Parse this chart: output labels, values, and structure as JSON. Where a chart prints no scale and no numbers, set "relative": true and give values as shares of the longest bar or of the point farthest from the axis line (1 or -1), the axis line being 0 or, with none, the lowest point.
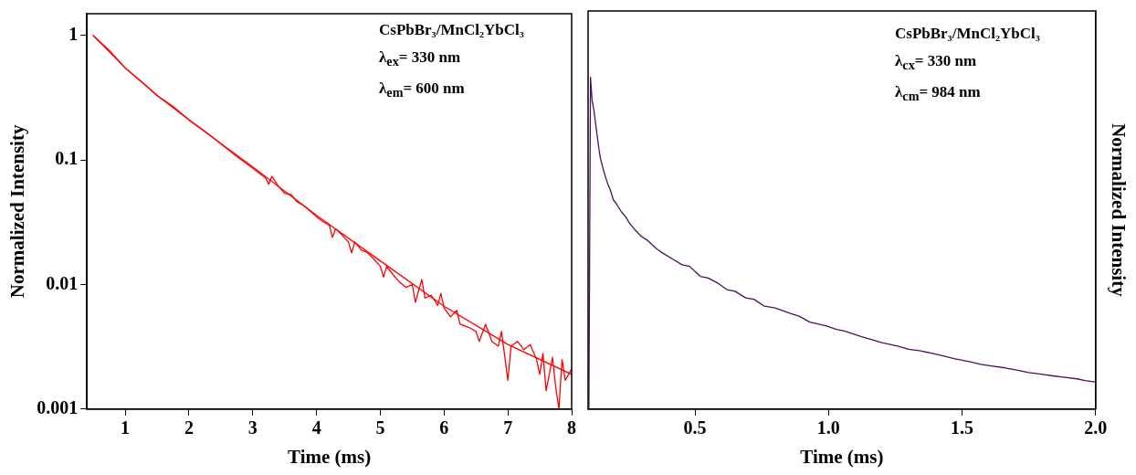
{
  "chart_data": [
    {
      "type": "line",
      "xlabel": "Time (ms)",
      "ylabel": "Normalized Intensity",
      "log": "y",
      "xlim": [
        0.4,
        8
      ],
      "xticks": [
        1,
        2,
        3,
        4,
        5,
        6,
        7,
        8
      ],
      "ylim": [
        0.001,
        1.5
      ],
      "yticks": [
        0.001,
        0.01,
        0.1,
        1
      ],
      "grid": false,
      "marker": "none",
      "line_style": "solid",
      "annotations": [
        "CsPbBr₃/MnCl₂YbCl₃",
        "λ$_{ex}$= 330 nm",
        "λ$_{em}$= 600 nm"
      ],
      "series": [
        {
          "color": "#ff0000",
          "x": [
            0.5,
            0.75,
            1,
            1.25,
            1.5,
            1.75,
            2,
            2.25,
            2.5,
            2.75,
            3,
            3.2,
            3.25,
            3.3,
            3.4,
            3.5,
            3.6,
            3.7,
            3.8,
            3.9,
            4.0,
            4.1,
            4.2,
            4.25,
            4.3,
            4.4,
            4.5,
            4.55,
            4.6,
            4.7,
            4.8,
            4.9,
            5.0,
            5.05,
            5.1,
            5.2,
            5.3,
            5.4,
            5.5,
            5.55,
            5.65,
            5.7,
            5.8,
            5.9,
            5.95,
            6.0,
            6.1,
            6.2,
            6.25,
            6.4,
            6.5,
            6.55,
            6.65,
            6.75,
            6.85,
            6.9,
            7.0,
            7.05,
            7.15,
            7.25,
            7.35,
            7.45,
            7.5,
            7.55,
            7.6,
            7.7,
            7.75,
            7.8,
            7.85,
            7.9,
            8.0
          ],
          "values": [
            1.0,
            0.76,
            0.55,
            0.43,
            0.33,
            0.27,
            0.21,
            0.17,
            0.135,
            0.107,
            0.086,
            0.072,
            0.064,
            0.074,
            0.062,
            0.054,
            0.053,
            0.046,
            0.043,
            0.039,
            0.035,
            0.032,
            0.03,
            0.024,
            0.028,
            0.025,
            0.022,
            0.018,
            0.022,
            0.019,
            0.018,
            0.016,
            0.014,
            0.0115,
            0.014,
            0.012,
            0.0105,
            0.0095,
            0.01,
            0.0072,
            0.011,
            0.0078,
            0.0082,
            0.0068,
            0.0085,
            0.0065,
            0.0055,
            0.0062,
            0.0048,
            0.0045,
            0.0042,
            0.0035,
            0.0048,
            0.0035,
            0.0032,
            0.0042,
            0.0017,
            0.0032,
            0.0035,
            0.003,
            0.0033,
            0.0025,
            0.0019,
            0.0028,
            0.0014,
            0.0026,
            0.0015,
            0.001,
            0.0025,
            0.0017,
            0.0021
          ]
        },
        {
          "type": "line",
          "color": "#ff0000",
          "x": [
            0.5,
            1,
            1.5,
            2,
            3,
            4,
            5,
            6,
            7,
            8
          ],
          "values": [
            1.0,
            0.55,
            0.33,
            0.21,
            0.088,
            0.036,
            0.0155,
            0.0067,
            0.0033,
            0.0019
          ]
        }
      ]
    },
    {
      "type": "line",
      "xlabel": "Time (ms)",
      "ylabel": "Normalized Intensity",
      "relative": true,
      "xlim": [
        0.1,
        2.0
      ],
      "xticks": [
        {
          "value": 0.5,
          "label": "0.5"
        },
        {
          "value": 1,
          "label": "1.0"
        },
        {
          "value": 1.5,
          "label": "1.5"
        },
        {
          "value": 2,
          "label": "2.0"
        }
      ],
      "grid": false,
      "marker": "none",
      "line_style": "solid",
      "annotations": [
        "CsPbBr₃/MnCl₂YbCl₃",
        "λ$_{cx}$= 330 nm",
        "λ$_{cm}$= 984 nm"
      ],
      "series": [
        {
          "color": "#4b0f5e",
          "x": [
            0.103,
            0.109,
            0.115,
            0.122,
            0.13,
            0.138,
            0.145,
            0.156,
            0.165,
            0.173,
            0.183,
            0.195,
            0.205,
            0.224,
            0.24,
            0.255,
            0.277,
            0.3,
            0.32,
            0.358,
            0.38,
            0.41,
            0.452,
            0.48,
            0.52,
            0.55,
            0.587,
            0.62,
            0.65,
            0.69,
            0.721,
            0.76,
            0.8,
            0.855,
            0.89,
            0.93,
            0.99,
            1.03,
            1.06,
            1.124,
            1.16,
            1.2,
            1.259,
            1.3,
            1.34,
            1.393,
            1.43,
            1.47,
            1.527,
            1.57,
            1.61,
            1.662,
            1.7,
            1.75,
            1.796,
            1.84,
            1.88,
            1.931,
            1.96,
            1.998
          ],
          "values": [
            0,
            1.0,
            0.93,
            0.9,
            0.849,
            0.8,
            0.76,
            0.725,
            0.7,
            0.68,
            0.661,
            0.63,
            0.62,
            0.595,
            0.58,
            0.56,
            0.539,
            0.52,
            0.51,
            0.482,
            0.47,
            0.455,
            0.435,
            0.43,
            0.4,
            0.395,
            0.379,
            0.36,
            0.355,
            0.335,
            0.331,
            0.31,
            0.305,
            0.289,
            0.28,
            0.262,
            0.251,
            0.24,
            0.235,
            0.218,
            0.21,
            0.2,
            0.19,
            0.18,
            0.176,
            0.167,
            0.16,
            0.152,
            0.143,
            0.135,
            0.13,
            0.124,
            0.118,
            0.11,
            0.105,
            0.1,
            0.096,
            0.091,
            0.086,
            0.082
          ]
        }
      ]
    }
  ]
}
